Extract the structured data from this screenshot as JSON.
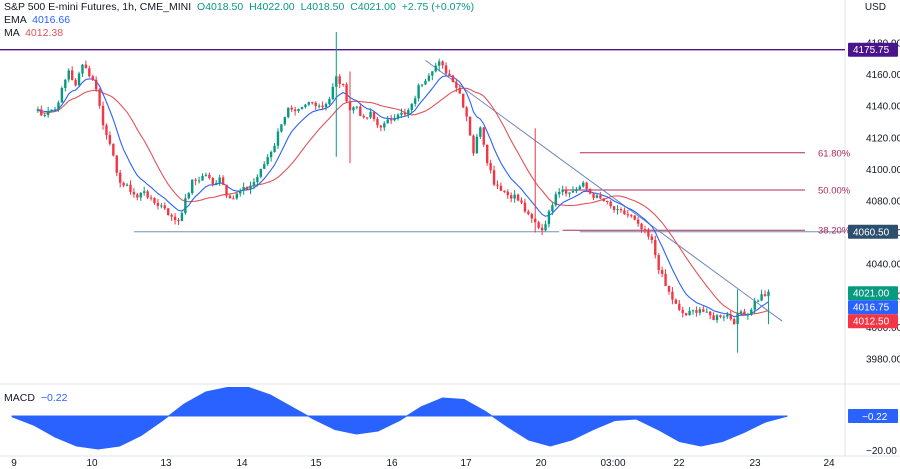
{
  "header": {
    "symbol": "S&P 500 E-mini Futures, 1h, CME_MINI",
    "open": "O4018.50",
    "high": "H4022.00",
    "low": "L4018.50",
    "close": "C4021.00",
    "change": "+2.75 (+0.07%)",
    "ema_label": "EMA",
    "ema_value": "4016.66",
    "ma_label": "MA",
    "ma_value": "4012.38",
    "currency": "USD"
  },
  "macd": {
    "label": "MACD",
    "value": "−0.22",
    "axis_ticks": [
      "−20.00"
    ],
    "badge": "−0.22"
  },
  "colors": {
    "up": "#089981",
    "down": "#f23645",
    "ema": "#2962ff",
    "ma": "#e0545b",
    "resistance": "#4a148c",
    "support": "#6f93b8",
    "fib": "#b02a5a",
    "trendline": "#6a86b8",
    "macd": "#2962ff"
  },
  "chart_data": [
    {
      "type": "candlestick",
      "title": "S&P 500 E-mini Futures, 1h, CME_MINI",
      "y_axis_unit": "USD",
      "ylim": [
        3970,
        4190
      ],
      "y_ticks": [
        "3980.00",
        "4000.00",
        "4020.00",
        "4040.00",
        "4060.00",
        "4080.00",
        "4100.00",
        "4120.00",
        "4140.00",
        "4160.00",
        "4180.00"
      ],
      "x_ticks": [
        "9",
        "10",
        "13",
        "14",
        "15",
        "16",
        "17",
        "20",
        "03:00",
        "22",
        "23",
        "24"
      ],
      "grid": false,
      "price_anchors": [
        [
          9,
          4138
        ],
        [
          10,
          4134
        ],
        [
          12,
          4138
        ],
        [
          14,
          4138
        ],
        [
          16,
          4150
        ],
        [
          18,
          4163
        ],
        [
          20,
          4152
        ],
        [
          22,
          4168
        ],
        [
          24,
          4160
        ],
        [
          26,
          4152
        ],
        [
          28,
          4128
        ],
        [
          30,
          4118
        ],
        [
          32,
          4096
        ],
        [
          34,
          4090
        ],
        [
          36,
          4087
        ],
        [
          38,
          4082
        ],
        [
          40,
          4087
        ],
        [
          42,
          4080
        ],
        [
          44,
          4078
        ],
        [
          46,
          4076
        ],
        [
          48,
          4069
        ],
        [
          50,
          4068
        ],
        [
          52,
          4080
        ],
        [
          54,
          4092
        ],
        [
          56,
          4094
        ],
        [
          58,
          4097
        ],
        [
          60,
          4090
        ],
        [
          62,
          4096
        ],
        [
          64,
          4085
        ],
        [
          66,
          4082
        ],
        [
          68,
          4086
        ],
        [
          70,
          4088
        ],
        [
          72,
          4092
        ],
        [
          74,
          4099
        ],
        [
          76,
          4108
        ],
        [
          78,
          4116
        ],
        [
          80,
          4130
        ],
        [
          82,
          4138
        ],
        [
          84,
          4135
        ],
        [
          86,
          4138
        ],
        [
          88,
          4142
        ],
        [
          90,
          4142
        ],
        [
          92,
          4140
        ],
        [
          94,
          4145
        ],
        [
          96,
          4158
        ],
        [
          98,
          4152
        ],
        [
          100,
          4138
        ],
        [
          102,
          4140
        ],
        [
          104,
          4131
        ],
        [
          106,
          4135
        ],
        [
          108,
          4128
        ],
        [
          110,
          4128
        ],
        [
          112,
          4132
        ],
        [
          114,
          4136
        ],
        [
          116,
          4134
        ],
        [
          118,
          4140
        ],
        [
          120,
          4152
        ],
        [
          122,
          4158
        ],
        [
          124,
          4164
        ],
        [
          126,
          4167
        ],
        [
          128,
          4162
        ],
        [
          130,
          4157
        ],
        [
          132,
          4148
        ],
        [
          134,
          4134
        ],
        [
          136,
          4111
        ],
        [
          138,
          4128
        ],
        [
          140,
          4106
        ],
        [
          142,
          4092
        ],
        [
          144,
          4088
        ],
        [
          146,
          4084
        ],
        [
          148,
          4083
        ],
        [
          150,
          4078
        ],
        [
          152,
          4070
        ],
        [
          154,
          4066
        ],
        [
          156,
          4062
        ],
        [
          158,
          4072
        ],
        [
          160,
          4086
        ],
        [
          162,
          4088
        ],
        [
          164,
          4085
        ],
        [
          166,
          4088
        ],
        [
          168,
          4090
        ],
        [
          170,
          4085
        ],
        [
          172,
          4082
        ],
        [
          174,
          4080
        ],
        [
          176,
          4076
        ],
        [
          178,
          4073
        ],
        [
          180,
          4072
        ],
        [
          182,
          4070
        ],
        [
          184,
          4064
        ],
        [
          186,
          4060
        ],
        [
          188,
          4054
        ],
        [
          190,
          4038
        ],
        [
          192,
          4026
        ],
        [
          194,
          4018
        ],
        [
          196,
          4010
        ],
        [
          198,
          4008
        ],
        [
          200,
          4010
        ],
        [
          202,
          4012
        ],
        [
          204,
          4008
        ],
        [
          206,
          4006
        ],
        [
          208,
          4008
        ],
        [
          210,
          4008
        ],
        [
          212,
          4004
        ],
        [
          214,
          4010
        ],
        [
          216,
          4009
        ],
        [
          218,
          4016
        ],
        [
          220,
          4020
        ],
        [
          222,
          4021
        ]
      ],
      "ranges": [
        {
          "high": 4187,
          "low": 4108,
          "at": 96
        },
        {
          "high": 4162,
          "low": 4104,
          "at": 100
        },
        {
          "high": 4170,
          "low": 4162,
          "at": 126
        },
        {
          "high": 4126,
          "low": 4060,
          "at": 154
        },
        {
          "high": 4024,
          "low": 3984,
          "at": 213
        },
        {
          "high": 4024,
          "low": 4002,
          "at": 222
        }
      ],
      "series": [
        {
          "name": "EMA",
          "value": "4016.66"
        },
        {
          "name": "MA",
          "value": "4012.38"
        }
      ],
      "horizontal_levels": [
        {
          "label": "4175.75",
          "value": 4175.75,
          "kind": "resistance"
        },
        {
          "label": "4060.50",
          "value": 4060.5,
          "kind": "support"
        }
      ],
      "fibonacci_levels": [
        {
          "label": "61.80%",
          "value": 4110.5
        },
        {
          "label": "50.00%",
          "value": 4087.0
        },
        {
          "label": "38.20%",
          "value": 4061.5
        }
      ],
      "price_badges": [
        {
          "label": "4175.75",
          "value": 4175.75,
          "kind": "resistance"
        },
        {
          "label": "4060.50",
          "value": 4060.5,
          "kind": "support"
        },
        {
          "label": "4021.00",
          "value": 4021.0,
          "kind": "last"
        },
        {
          "label": "4016.75",
          "value": 4016.75,
          "kind": "ema"
        },
        {
          "label": "4012.50",
          "value": 4012.5,
          "kind": "ma"
        }
      ]
    },
    {
      "type": "area",
      "title": "MACD",
      "value": "−0.22",
      "y_ticks": [
        "−20.00"
      ],
      "values": [
        -0.5,
        -6,
        -14,
        -20,
        -22,
        -20,
        -13,
        -3,
        8,
        16,
        19,
        19,
        14,
        6,
        -2,
        -9,
        -12,
        -10,
        -3,
        6,
        12,
        11,
        3,
        -7,
        -16,
        -20,
        -16,
        -9,
        -3,
        -2,
        -9,
        -17,
        -20,
        -17,
        -11,
        -4,
        -0.22
      ]
    }
  ]
}
